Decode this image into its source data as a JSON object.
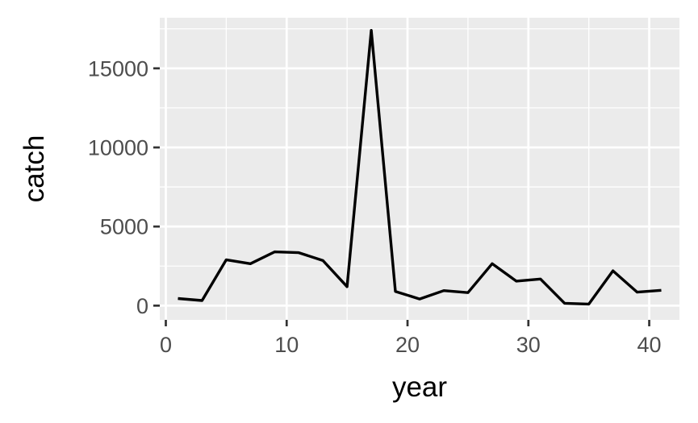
{
  "chart_data": {
    "type": "line",
    "title": "",
    "xlabel": "year",
    "ylabel": "catch",
    "xlim": [
      -0.5,
      42.5
    ],
    "ylim": [
      -900,
      18200
    ],
    "x_ticks": [
      0,
      10,
      20,
      30,
      40
    ],
    "y_ticks": [
      0,
      5000,
      10000,
      15000
    ],
    "x_tick_labels": [
      "0",
      "10",
      "20",
      "30",
      "40"
    ],
    "y_tick_labels": [
      "0",
      "5000",
      "10000",
      "15000"
    ],
    "grid": true,
    "legend": "none",
    "series": [
      {
        "x": [
          1,
          3,
          5,
          7,
          9,
          11,
          13,
          15,
          17,
          19,
          21,
          23,
          25,
          27,
          29,
          31,
          33,
          35,
          37,
          39,
          41
        ],
        "values": [
          450,
          320,
          2900,
          2650,
          3400,
          3350,
          2850,
          1200,
          17400,
          900,
          420,
          950,
          820,
          2650,
          1550,
          1680,
          150,
          100,
          2200,
          850,
          970
        ]
      }
    ]
  },
  "colors": {
    "panel": "#ebebeb",
    "grid": "#ffffff",
    "line": "#000000",
    "tick": "#333333",
    "tick_label": "#4d4d4d"
  }
}
